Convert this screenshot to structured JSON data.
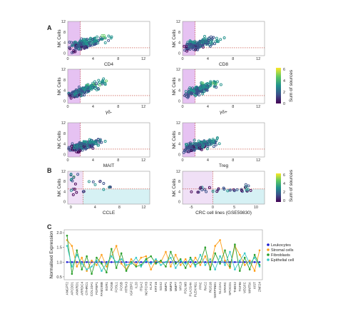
{
  "panels": {
    "a": "A",
    "b": "B",
    "c": "C"
  },
  "colorbar_title": "Sum of sources",
  "colorbar_ticks": [
    "0",
    "2",
    "4",
    "6"
  ],
  "palette": {
    "viridis": [
      "#440154",
      "#3b528b",
      "#21918c",
      "#5ec962",
      "#fde725"
    ],
    "region": "#e0b8f0",
    "region_b": "#cfeef2",
    "line_blue": "#1a1ad0",
    "line_green": "#2ca02c",
    "line_orange": "#ff9f1a",
    "line_cyan": "#38c8c8",
    "dash_red": "#c0392b"
  },
  "chart_data": [
    {
      "id": "cd4",
      "type": "scatter",
      "xlabel": "CD4",
      "ylabel": "NK Cells",
      "xlim": [
        0,
        13
      ],
      "ylim": [
        -1,
        12
      ],
      "xticks": [
        "0",
        "4",
        "8",
        "12"
      ],
      "yticks": [
        "0",
        "4",
        "8",
        "12"
      ],
      "threshold_x": 2,
      "threshold_y": 2,
      "trend": "moderate",
      "values": "dense cloud, ~200 points"
    },
    {
      "id": "cd8",
      "type": "scatter",
      "xlabel": "CD8",
      "ylabel": "NK Cells",
      "xlim": [
        0,
        13
      ],
      "ylim": [
        -1,
        12
      ],
      "xticks": [
        "0",
        "4",
        "8",
        "12"
      ],
      "yticks": [
        "0",
        "4",
        "8",
        "12"
      ],
      "threshold_x": 2,
      "threshold_y": 2,
      "trend": "moderate"
    },
    {
      "id": "gd",
      "type": "scatter",
      "xlabel": "γδ-",
      "ylabel": "NK Cells",
      "xlim": [
        0,
        13
      ],
      "ylim": [
        -1,
        12
      ],
      "xticks": [
        "0",
        "4",
        "8",
        "12"
      ],
      "yticks": [
        "0",
        "4",
        "8",
        "12"
      ],
      "threshold_x": 2,
      "threshold_y": 2,
      "trend": "strong"
    },
    {
      "id": "gdp",
      "type": "scatter",
      "xlabel": "γδ+",
      "ylabel": "NK Cells",
      "xlim": [
        0,
        13
      ],
      "ylim": [
        -1,
        12
      ],
      "xticks": [
        "0",
        "4",
        "8",
        "12"
      ],
      "yticks": [
        "0",
        "4",
        "8",
        "12"
      ],
      "threshold_x": 2,
      "threshold_y": 2,
      "trend": "strong"
    },
    {
      "id": "mait",
      "type": "scatter",
      "xlabel": "MAIT",
      "ylabel": "NK Cells",
      "xlim": [
        0,
        13
      ],
      "ylim": [
        -1,
        12
      ],
      "xticks": [
        "0",
        "4",
        "8",
        "12"
      ],
      "yticks": [
        "0",
        "4",
        "8",
        "12"
      ],
      "threshold_x": 2,
      "threshold_y": 2,
      "trend": "moderate"
    },
    {
      "id": "treg",
      "type": "scatter",
      "xlabel": "Treg",
      "ylabel": "NK Cells",
      "xlim": [
        0,
        13
      ],
      "ylim": [
        -1,
        12
      ],
      "xticks": [
        "0",
        "4",
        "8",
        "12"
      ],
      "yticks": [
        "0",
        "4",
        "8",
        "12"
      ],
      "threshold_x": 2,
      "threshold_y": 2,
      "trend": "moderate"
    },
    {
      "id": "ccle",
      "type": "scatter",
      "xlabel": "CCLE",
      "ylabel": "NK Cells",
      "xlim": [
        -0.5,
        13
      ],
      "ylim": [
        -1,
        12
      ],
      "xticks": [
        "0",
        "4",
        "8",
        "12"
      ],
      "yticks": [
        "0",
        "4",
        "8",
        "12"
      ],
      "threshold_x": 2,
      "threshold_y": 5
    },
    {
      "id": "crc",
      "type": "scatter",
      "xlabel": "CRC cell lines (GSE59830)",
      "ylabel": "NK Cells",
      "xlim": [
        -7,
        12
      ],
      "ylim": [
        -1,
        12
      ],
      "xticks": [
        "-5",
        "0",
        "5",
        "10"
      ],
      "yticks": [
        "0",
        "4",
        "8",
        "12"
      ],
      "threshold_x": 0,
      "threshold_y": 5
    },
    {
      "id": "expression",
      "type": "line",
      "ylabel": "Normalised Expression",
      "ylim": [
        0.4,
        2.1
      ],
      "yticks": [
        "0.5",
        "1.0",
        "1.5",
        "2.0"
      ],
      "legend_position": "right",
      "categories": [
        "ANGPT2",
        "APCDD1",
        "ANKRD1",
        "ARRDC4",
        "CTHRC1",
        "COL10A1",
        "FGFBP1",
        "FAM198B",
        "EGR1",
        "FOSB",
        "FOSL1",
        "FOSB",
        "HTRA3",
        "IGF2BP2",
        "IL20",
        "ITGA2",
        "NOTCH3",
        "KLF2",
        "KRT16",
        "SOX2",
        "MMP1",
        "MMP3",
        "MMP7",
        "MYL9",
        "PDLIM3",
        "PLA2G4A",
        "PLEKHG1",
        "PPIC",
        "RAC2",
        "RGS16",
        "SERPINE1",
        "SLC2A1",
        "SPARC",
        "SPOCD1",
        "THBS2",
        "TGFBI",
        "VEGFC",
        "WNT5A",
        "XIST",
        "ZNF24"
      ],
      "series": [
        {
          "name": "Leukocytes",
          "color": "#1a1ad0",
          "values": [
            1.0,
            1.0,
            1.0,
            1.0,
            1.0,
            1.0,
            1.0,
            1.0,
            1.0,
            1.0,
            1.0,
            1.0,
            1.0,
            1.0,
            1.0,
            1.0,
            1.0,
            1.0,
            1.0,
            1.0,
            1.0,
            1.0,
            1.0,
            1.0,
            1.0,
            1.0,
            1.0,
            1.0,
            1.0,
            1.0,
            1.0,
            1.0,
            1.0,
            1.0,
            1.0,
            1.0,
            1.0,
            1.0,
            1.0,
            1.0
          ]
        },
        {
          "name": "Stromal cells",
          "color": "#ff9f1a",
          "values": [
            1.75,
            1.55,
            0.85,
            1.15,
            0.7,
            1.05,
            0.9,
            1.25,
            0.85,
            1.2,
            1.55,
            0.95,
            0.75,
            1.1,
            0.9,
            1.15,
            1.2,
            0.75,
            1.05,
            1.0,
            1.35,
            0.85,
            1.25,
            0.9,
            1.1,
            0.85,
            1.15,
            0.9,
            1.2,
            0.8,
            1.55,
            1.75,
            1.05,
            0.8,
            1.55,
            1.25,
            0.9,
            1.05,
            0.7,
            1.4
          ]
        },
        {
          "name": "Fibroblasts",
          "color": "#2ca02c",
          "values": [
            1.9,
            0.6,
            1.4,
            0.75,
            1.2,
            0.6,
            1.15,
            0.95,
            0.65,
            1.45,
            0.8,
            1.3,
            0.7,
            1.0,
            0.85,
            0.9,
            1.1,
            1.2,
            0.95,
            1.05,
            0.85,
            1.35,
            0.95,
            1.1,
            0.8,
            1.15,
            0.9,
            1.0,
            1.5,
            0.75,
            1.3,
            0.95,
            1.4,
            0.85,
            1.6,
            0.7,
            1.15,
            0.75,
            1.25,
            0.9
          ]
        },
        {
          "name": "Epithelial cell",
          "color": "#38c8c8",
          "values": [
            1.55,
            0.85,
            1.25,
            0.95,
            0.75,
            0.85,
            1.05,
            0.7,
            0.95,
            1.2,
            1.0,
            1.1,
            0.9,
            0.95,
            1.15,
            0.85,
            1.05,
            0.95,
            1.1,
            0.9,
            1.0,
            1.15,
            0.8,
            1.05,
            0.95,
            1.1,
            0.85,
            1.25,
            0.9,
            1.1,
            0.75,
            1.2,
            0.9,
            1.35,
            0.75,
            1.05,
            1.3,
            0.95,
            1.15,
            0.85
          ]
        }
      ]
    }
  ]
}
